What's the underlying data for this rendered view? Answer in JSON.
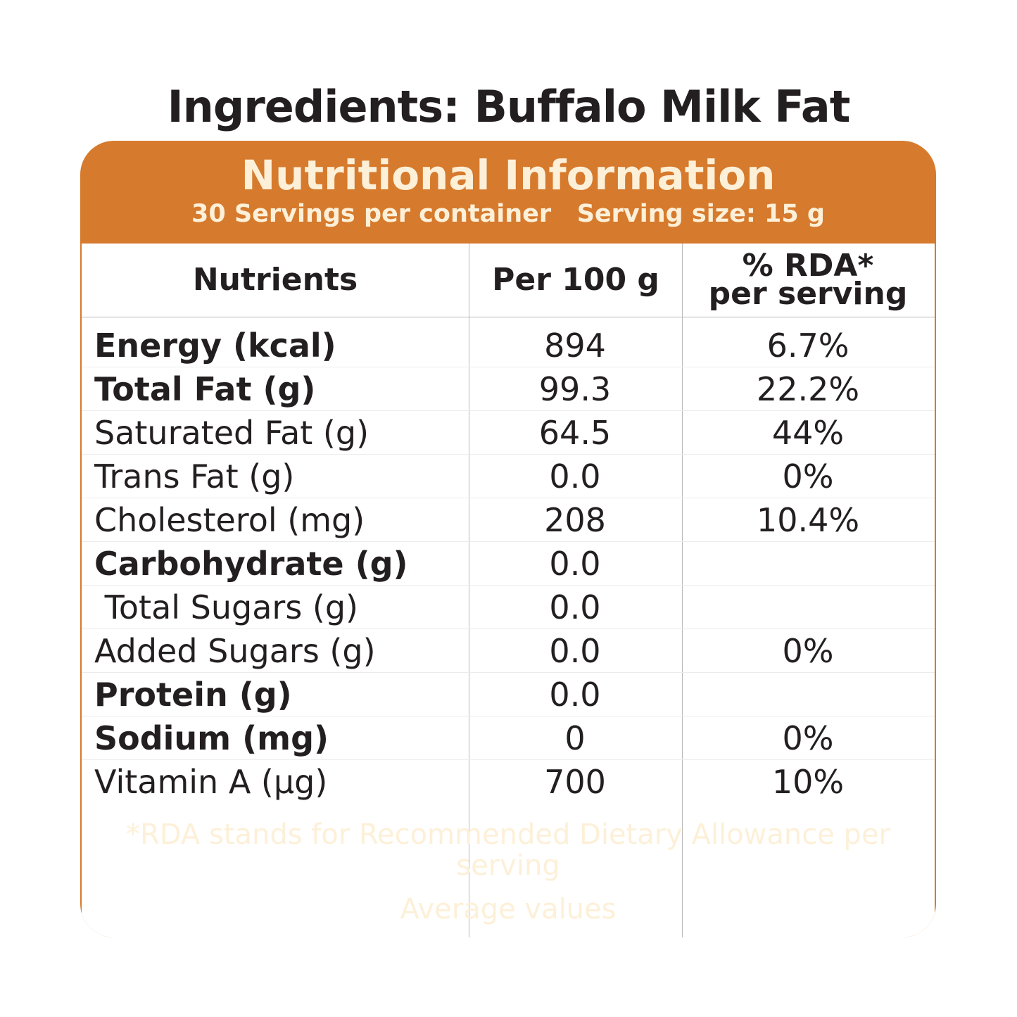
{
  "ingredients": "Ingredients: Buffalo Milk Fat",
  "panel": {
    "title": "Nutritional Information",
    "subtitle": "30 Servings per container   Serving size: 15 g",
    "colors": {
      "orange": "#d67a2d",
      "cream": "#fdf0d8"
    }
  },
  "table": {
    "headers": {
      "nutrients": "Nutrients",
      "per100": "Per 100 g",
      "rda_line1": "% RDA*",
      "rda_line2": "per serving"
    },
    "rows": [
      {
        "name": "Energy (kcal)",
        "per100": "894",
        "rda": "6.7%",
        "bold": true
      },
      {
        "name": "Total Fat (g)",
        "per100": "99.3",
        "rda": "22.2%",
        "bold": true
      },
      {
        "name": "Saturated Fat (g)",
        "per100": "64.5",
        "rda": "44%",
        "bold": false
      },
      {
        "name": "Trans Fat (g)",
        "per100": "0.0",
        "rda": "0%",
        "bold": false
      },
      {
        "name": "Cholesterol (mg)",
        "per100": "208",
        "rda": "10.4%",
        "bold": false
      },
      {
        "name": "Carbohydrate (g)",
        "per100": "0.0",
        "rda": "",
        "bold": true
      },
      {
        "name": " Total Sugars (g)",
        "per100": "0.0",
        "rda": "",
        "bold": false
      },
      {
        "name": "Added Sugars (g)",
        "per100": "0.0",
        "rda": "0%",
        "bold": false
      },
      {
        "name": "Protein (g)",
        "per100": "0.0",
        "rda": "",
        "bold": true
      },
      {
        "name": "Sodium (mg)",
        "per100": "0",
        "rda": "0%",
        "bold": true
      },
      {
        "name": "Vitamin A (µg)",
        "per100": "700",
        "rda": "10%",
        "bold": false
      }
    ]
  },
  "footer": {
    "rda_note": "*RDA stands for Recommended Dietary Allowance per serving",
    "average": "Average values"
  }
}
